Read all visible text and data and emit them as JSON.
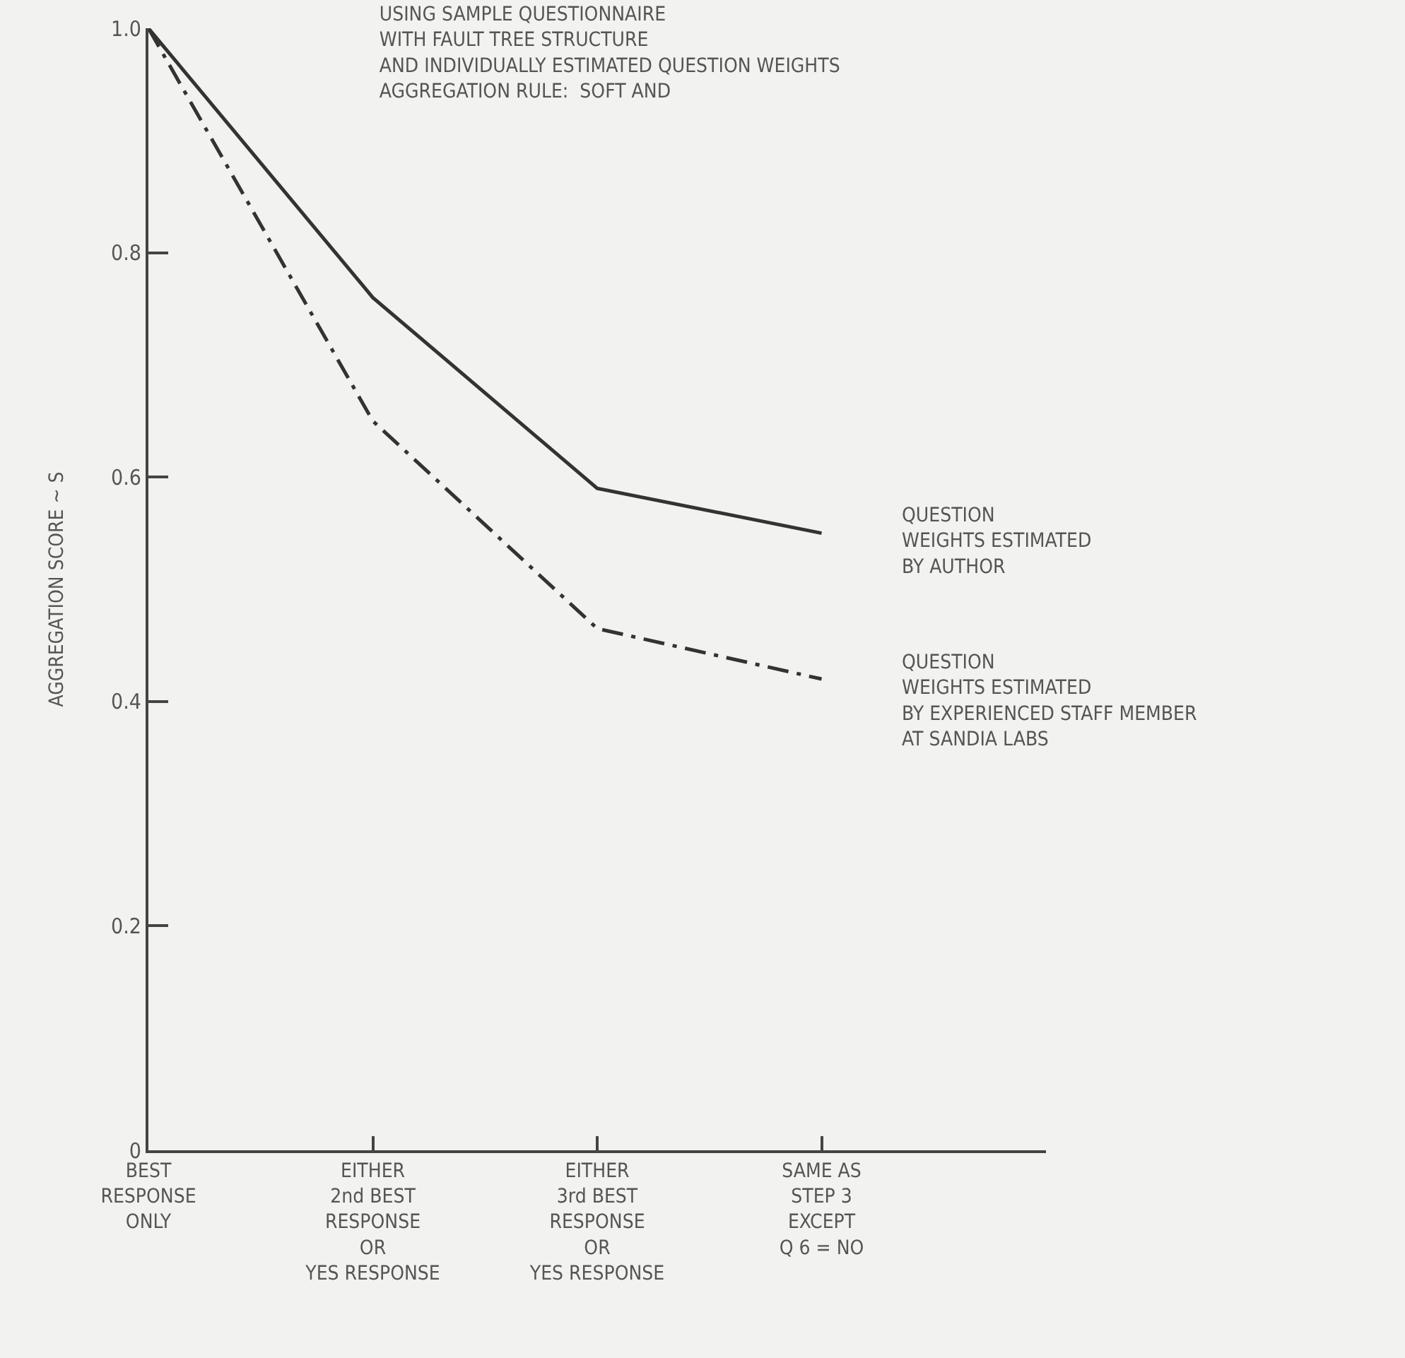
{
  "chart_data": {
    "type": "line",
    "title": "USING SAMPLE QUESTIONNAIRE\nWITH FAULT TREE STRUCTURE\nAND INDIVIDUALLY ESTIMATED QUESTION WEIGHTS\nAGGREGATION RULE:  SOFT AND",
    "ylabel": "AGGREGATION SCORE ~ S",
    "categories": [
      "BEST\nRESPONSE\nONLY",
      "EITHER\n2nd BEST\nRESPONSE\nOR\nYES RESPONSE",
      "EITHER\n3rd BEST\nRESPONSE\nOR\nYES RESPONSE",
      "SAME AS\nSTEP 3\nEXCEPT\nQ 6 = NO"
    ],
    "series": [
      {
        "name": "QUESTION\nWEIGHTS ESTIMATED\nBY AUTHOR",
        "color": "#333333",
        "line_style": "solid",
        "values": [
          1.0,
          0.76,
          0.59,
          0.55
        ]
      },
      {
        "name": "QUESTION\nWEIGHTS ESTIMATED\nBY EXPERIENCED STAFF MEMBER\nAT SANDIA LABS",
        "color": "#333333",
        "line_style": "dashed",
        "values": [
          1.0,
          0.65,
          0.465,
          0.42
        ]
      }
    ],
    "ylim": [
      0,
      1
    ],
    "yticks": [
      0,
      {
        "value": 0.2,
        "label": "0.2"
      },
      {
        "value": 0.4,
        "label": "0.4"
      },
      {
        "value": 0.6,
        "label": "0.6"
      },
      {
        "value": 0.8,
        "label": "0.8"
      },
      {
        "value": 1,
        "label": "1.0"
      }
    ],
    "grid": false,
    "legend": false,
    "marker": "none"
  }
}
